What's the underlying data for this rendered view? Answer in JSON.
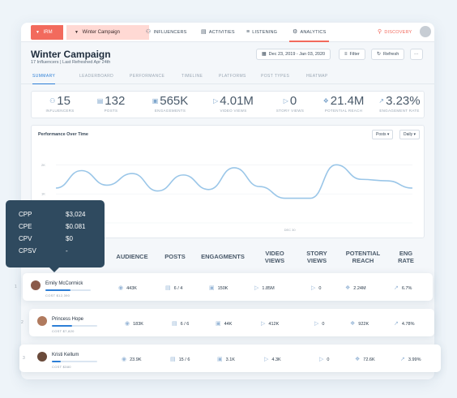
{
  "topbar": {
    "brand": "IRM",
    "campaign": "Winter Campaign",
    "nav": [
      {
        "label": "INFLUENCERS",
        "icon": "people-icon"
      },
      {
        "label": "ACTIVITIES",
        "icon": "document-icon"
      },
      {
        "label": "LISTENING",
        "icon": "sliders-icon"
      },
      {
        "label": "ANALYTICS",
        "icon": "gear-icon"
      }
    ],
    "discovery": "DISCOVERY"
  },
  "header": {
    "title": "Winter Campaign",
    "subtitle": "17 Influencers | Last Refreshed Apr 24th",
    "date_range": "Dec 23, 2019 - Jan 03, 2020",
    "filter_label": "Filter",
    "refresh_label": "Refresh",
    "more_label": "···"
  },
  "tabs": [
    "SUMMARY",
    "LEADERBOARD",
    "PERFORMANCE",
    "TIMELINE",
    "PLATFORMS",
    "POST TYPES",
    "HEATMAP"
  ],
  "stats": [
    {
      "value": "15",
      "label": "INFLUENCERS",
      "icon": "people-icon"
    },
    {
      "value": "132",
      "label": "POSTS",
      "icon": "document-icon"
    },
    {
      "value": "565K",
      "label": "ENGAGEMENTS",
      "icon": "chat-icon"
    },
    {
      "value": "4.01M",
      "label": "VIDEO VIEWS",
      "icon": "play-icon"
    },
    {
      "value": "0",
      "label": "STORY VIEWS",
      "icon": "play-icon"
    },
    {
      "value": "21.4M",
      "label": "POTENTIAL REACH",
      "icon": "broadcast-icon"
    },
    {
      "value": "3.23%",
      "label": "ENGAGEMENT RATE",
      "icon": "trend-icon"
    }
  ],
  "chart": {
    "title": "Performance Over Time",
    "metric_select": "Posts",
    "interval_select": "Daily",
    "y_ticks": [
      "2K",
      "1K",
      "0"
    ],
    "x_tick": "DEC 30"
  },
  "chart_data": {
    "type": "line",
    "title": "Performance Over Time",
    "xlabel": "",
    "ylabel": "",
    "x_tick_labels": [
      "DEC 30"
    ],
    "y_tick_labels": [
      "2K",
      "1K",
      "0"
    ],
    "ylim": [
      0,
      2400
    ],
    "grid": true,
    "series": [
      {
        "values": [
          1200,
          1800,
          1300,
          1700,
          1100,
          1650,
          1150,
          1900,
          1250,
          850,
          850,
          2000,
          1500,
          1450,
          1200
        ]
      }
    ]
  },
  "table": {
    "headers": [
      "AUDIENCE",
      "POSTS",
      "ENGAGMENTS",
      "VIDEO VIEWS",
      "STORY VIEWS",
      "POTENTIAL REACH",
      "ENG RATE"
    ],
    "rows": [
      {
        "index": "1",
        "name": "Emily McCormick",
        "cost": "COST $12,390",
        "progress": 0.55,
        "audience": "443K",
        "posts": "6 / 4",
        "engagements": "150K",
        "video_views": "1.85M",
        "story_views": "0",
        "reach": "2.24M",
        "eng_rate": "6.7%"
      },
      {
        "index": "2",
        "name": "Princess Hope",
        "cost": "COST $7,820",
        "progress": 0.45,
        "audience": "183K",
        "posts": "6 / 6",
        "engagements": "44K",
        "video_views": "412K",
        "story_views": "0",
        "reach": "922K",
        "eng_rate": "4.78%"
      },
      {
        "index": "3",
        "name": "Kristi Kellum",
        "cost": "COST $380",
        "progress": 0.2,
        "audience": "23.9K",
        "posts": "15 / 6",
        "engagements": "3.1K",
        "video_views": "4.3K",
        "story_views": "0",
        "reach": "72.6K",
        "eng_rate": "3.99%"
      }
    ]
  },
  "tooltip": [
    {
      "key": "CPP",
      "value": "$3,024"
    },
    {
      "key": "CPE",
      "value": "$0.081"
    },
    {
      "key": "CPV",
      "value": "$0"
    },
    {
      "key": "CPSV",
      "value": "-"
    }
  ],
  "colors": {
    "accent": "#f26a5d",
    "primary": "#2d7fd6",
    "line": "#9ac6e8",
    "tooltip": "#2f4a5f"
  }
}
